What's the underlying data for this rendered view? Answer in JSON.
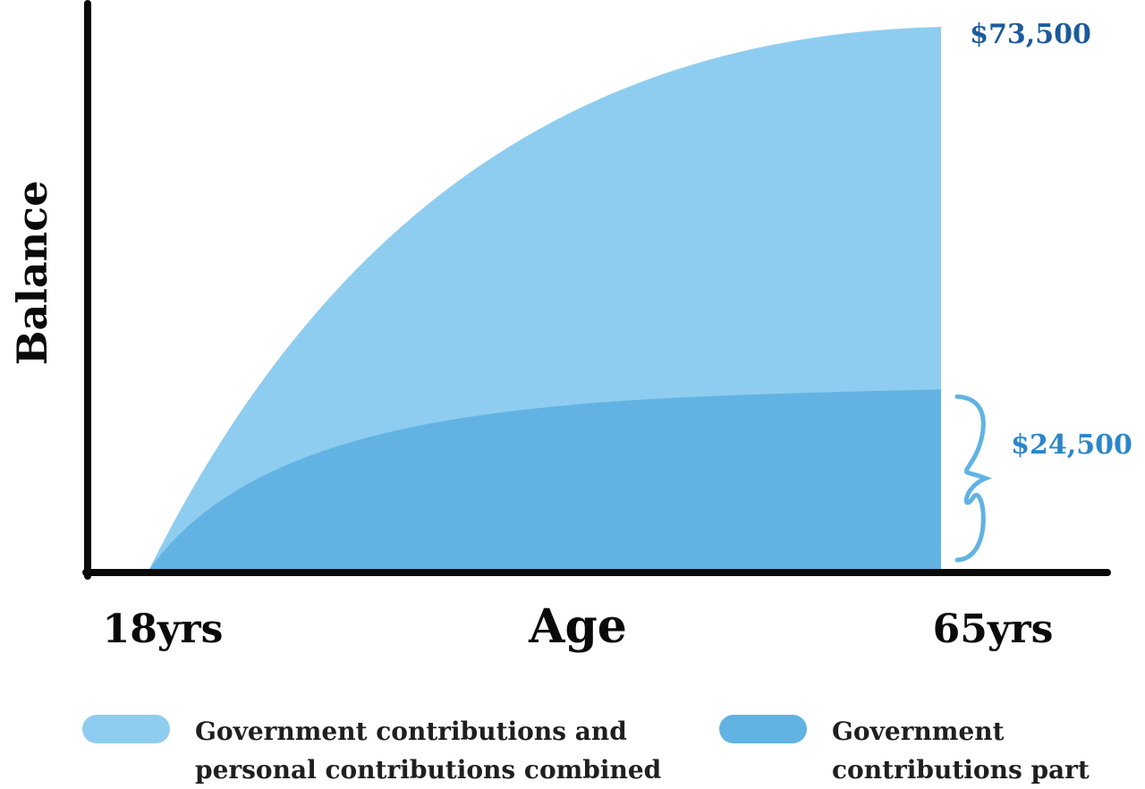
{
  "colors": {
    "combined": "#8fcdf0",
    "government": "#62b3e3",
    "value_top": "#1c5a9a",
    "value_bottom": "#2b86c9",
    "axis": "#0a0a0a"
  },
  "chart_data": {
    "type": "area",
    "xlabel": "Age",
    "ylabel": "Balance",
    "x_ticks": [
      "18yrs",
      "65yrs"
    ],
    "x": [
      18,
      65
    ],
    "series": [
      {
        "name": "Government contributions and personal contributions combined",
        "start_value": 0,
        "end_value": 73500,
        "end_label": "$73,500"
      },
      {
        "name": "Government contributions part",
        "start_value": 0,
        "end_value": 24500,
        "end_label": "$24,500"
      }
    ],
    "grid": false,
    "legend_position": "bottom"
  },
  "legend": [
    {
      "label_line1": "Government contributions and",
      "label_line2": "personal contributions combined"
    },
    {
      "label_line1": "Government",
      "label_line2": "contributions part"
    }
  ]
}
